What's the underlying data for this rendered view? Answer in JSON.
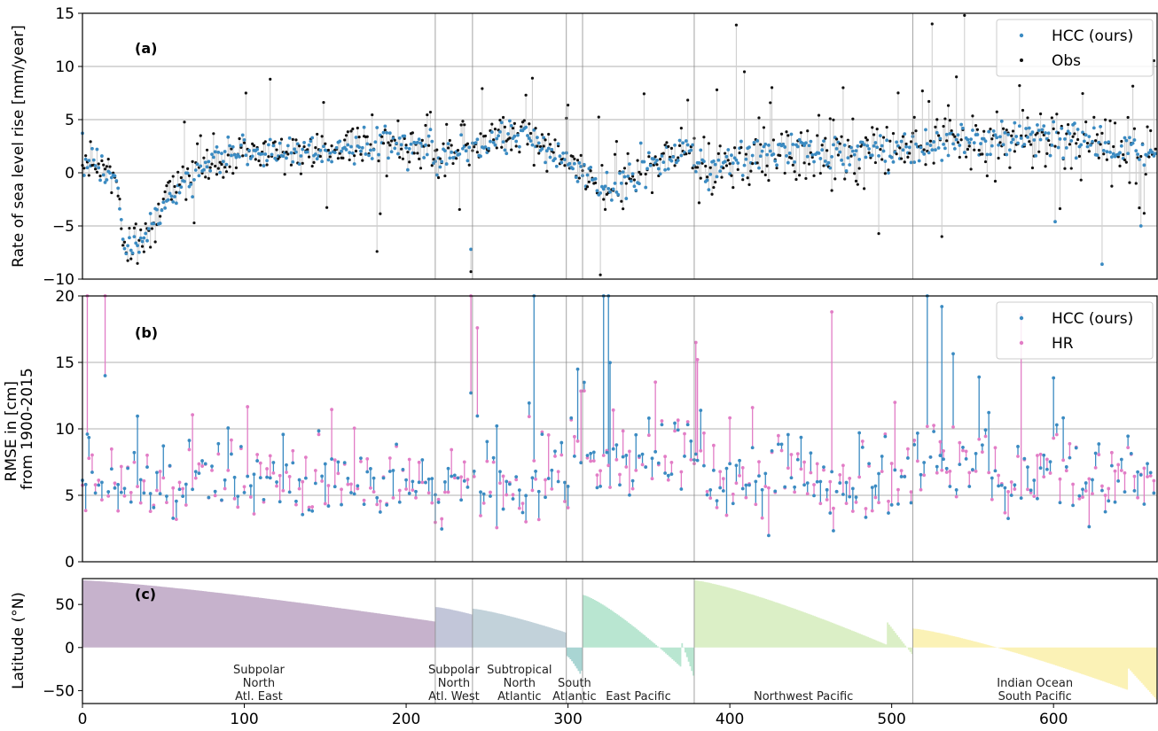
{
  "chart_data": [
    {
      "panel": "(a)",
      "type": "scatter",
      "ylabel": "Rate of sea level rise [mm/year]",
      "ylim": [
        -10,
        15
      ],
      "yticks": [
        "−10",
        "−5",
        "0",
        "5",
        "10",
        "15"
      ],
      "ytick_values": [
        -10,
        -5,
        0,
        5,
        10,
        15
      ],
      "grid": true,
      "legend": "top-right",
      "series": [
        {
          "name": "HCC (ours)",
          "color": "#3b8bc2"
        },
        {
          "name": "Obs",
          "color": "#111111"
        }
      ],
      "trend_knots": {
        "x": [
          0,
          20,
          25,
          35,
          45,
          60,
          80,
          100,
          150,
          200,
          215,
          220,
          240,
          260,
          275,
          290,
          300,
          305,
          315,
          325,
          340,
          360,
          375,
          380,
          400,
          420,
          450,
          500,
          512,
          530,
          560,
          600,
          640,
          664
        ],
        "y": [
          1.5,
          0,
          -6.5,
          -7,
          -4,
          -1,
          1,
          2,
          2.2,
          2.5,
          2.8,
          1.5,
          2.5,
          3.5,
          3.5,
          2,
          1,
          0.5,
          -0.5,
          -1.5,
          -0.5,
          1.5,
          2.5,
          0.5,
          1,
          2,
          2,
          2,
          2.5,
          2.5,
          3,
          3.5,
          2.5,
          2
        ]
      },
      "n_stations": 664,
      "highlight_points": [
        {
          "x": 101,
          "obs": 7.5
        },
        {
          "x": 116,
          "obs": 8.8
        },
        {
          "x": 182,
          "obs": 7.8
        },
        {
          "x": 182,
          "obs": -7.4
        },
        {
          "x": 240,
          "hcc": -7.2,
          "obs": -9.3
        },
        {
          "x": 278,
          "obs": 8.9
        },
        {
          "x": 320,
          "obs": -9.6
        },
        {
          "x": 392,
          "obs": 7.8
        },
        {
          "x": 404,
          "obs": 13.9
        },
        {
          "x": 409,
          "obs": 9.5
        },
        {
          "x": 525,
          "obs": 14
        },
        {
          "x": 531,
          "obs": -6
        },
        {
          "x": 545,
          "obs": 14.8
        },
        {
          "x": 579,
          "obs": 8.2
        },
        {
          "x": 601,
          "hcc": -4.6
        },
        {
          "x": 630,
          "hcc": -8.6
        },
        {
          "x": 654,
          "hcc": -5
        }
      ]
    },
    {
      "panel": "(b)",
      "type": "scatter",
      "ylabel": "RMSE in [cm]\nfrom 1900-2015",
      "ylabel_lines": [
        "RMSE in [cm]",
        "from 1900-2015"
      ],
      "ylim": [
        0,
        20
      ],
      "yticks": [
        "0",
        "5",
        "10",
        "15",
        "20"
      ],
      "ytick_values": [
        0,
        5,
        10,
        15,
        20
      ],
      "grid": true,
      "legend": "top-right",
      "series": [
        {
          "name": "HCC (ours)",
          "color": "#3b8bc2"
        },
        {
          "name": "HR",
          "color": "#e27dc6"
        }
      ],
      "typical_range": [
        2,
        10
      ],
      "outliers": [
        {
          "x": 3,
          "hr": 20,
          "hcc": 9.6
        },
        {
          "x": 14,
          "hr": 20,
          "hcc": 14
        },
        {
          "x": 240,
          "hcc": 12.7,
          "hr": 20
        },
        {
          "x": 244,
          "hr": 17.6
        },
        {
          "x": 279,
          "hcc": 20,
          "hr": 7.6
        },
        {
          "x": 322,
          "hcc": 20,
          "hr": 8
        },
        {
          "x": 325,
          "hcc": 20
        },
        {
          "x": 379,
          "hr": 16.5
        },
        {
          "x": 463,
          "hr": 18.8
        },
        {
          "x": 522,
          "hcc": 20
        },
        {
          "x": 531,
          "hcc": 19.2
        },
        {
          "x": 580,
          "hr": 18.6
        },
        {
          "x": 590,
          "hr": 8
        }
      ]
    },
    {
      "panel": "(c)",
      "type": "bar",
      "ylabel": "Latitude (°N)",
      "ylim": [
        -65,
        80
      ],
      "yticks": [
        "−50",
        "0",
        "50"
      ],
      "ytick_values": [
        -50,
        0,
        50
      ],
      "xlim": [
        0,
        664
      ],
      "xticks": [
        "0",
        "100",
        "200",
        "300",
        "400",
        "500",
        "600"
      ],
      "xtick_values": [
        0,
        100,
        200,
        300,
        400,
        500,
        600
      ],
      "region_boundaries": [
        218,
        241,
        299,
        309,
        378,
        513
      ],
      "regions": [
        {
          "start": 0,
          "end": 218,
          "color": "#c6b2cc",
          "lat_start": 78,
          "lat_end": 30,
          "label_lines": [
            "Subpolar",
            "North",
            "Atl. East"
          ]
        },
        {
          "start": 218,
          "end": 241,
          "color": "#c2c6d9",
          "lat_start": 47,
          "lat_end": 38,
          "label_lines": [
            "Subpolar",
            "North",
            "Atl. West"
          ]
        },
        {
          "start": 241,
          "end": 299,
          "color": "#c2d2da",
          "lat_start": 45,
          "lat_end": 17,
          "label_lines": [
            "Subtropical",
            "North",
            "Atlantic"
          ]
        },
        {
          "start": 299,
          "end": 309,
          "color": "#a9d5d3",
          "lat_start": -10,
          "lat_end": -37,
          "label_lines": [
            "South",
            "Atlantic"
          ]
        },
        {
          "start": 309,
          "end": 378,
          "color": "#b9e6d1",
          "lat_start": 61,
          "lat_end": -38,
          "label_lines": [
            "East Pacific"
          ]
        },
        {
          "start": 378,
          "end": 513,
          "color": "#dbefc6",
          "lat_start": 78,
          "lat_end": -10,
          "label_lines": [
            "Northwest Pacific"
          ]
        },
        {
          "start": 513,
          "end": 664,
          "color": "#fbf2b6",
          "lat_start": 22,
          "lat_end": -62,
          "label_lines": [
            "Indian Ocean",
            "South Pacific"
          ]
        }
      ]
    }
  ]
}
